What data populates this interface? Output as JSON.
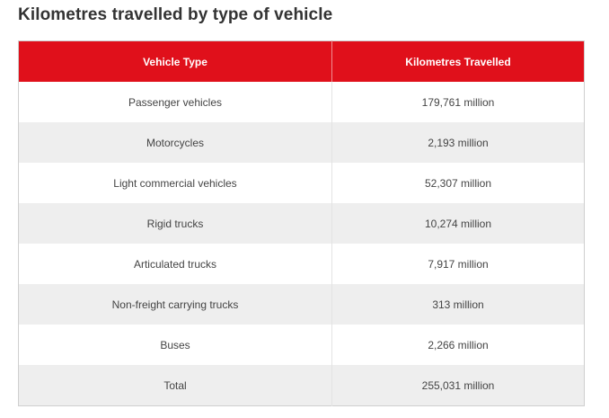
{
  "page": {
    "title": "Kilometres travelled by type of vehicle"
  },
  "table": {
    "headers": [
      "Vehicle Type",
      "Kilometres Travelled"
    ],
    "rows": [
      [
        "Passenger vehicles",
        "179,761 million"
      ],
      [
        "Motorcycles",
        "2,193 million"
      ],
      [
        "Light commercial vehicles",
        "52,307 million"
      ],
      [
        "Rigid trucks",
        "10,274 million"
      ],
      [
        "Articulated trucks",
        "7,917 million"
      ],
      [
        "Non-freight carrying trucks",
        "313 million"
      ],
      [
        "Buses",
        "2,266 million"
      ],
      [
        "Total",
        "255,031 million"
      ]
    ]
  },
  "colors": {
    "header_background": "#e0101b",
    "header_text": "#ffffff",
    "stripe": "#eeeeee"
  }
}
